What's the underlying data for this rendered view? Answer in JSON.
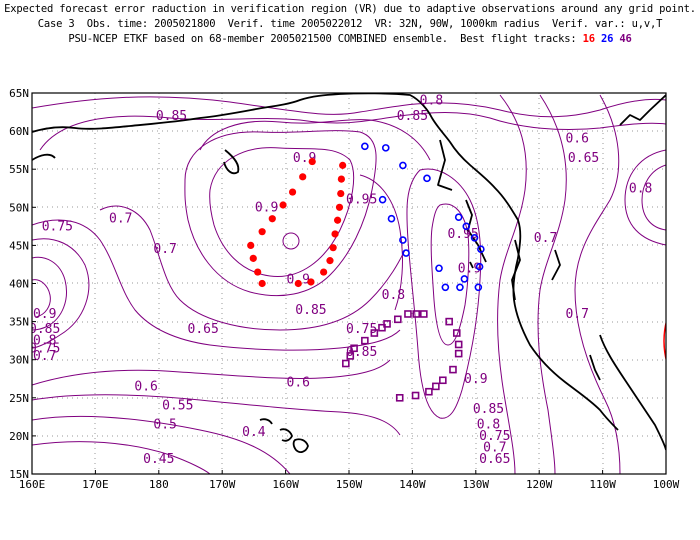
{
  "header": {
    "line1": "Expected forecast error raduction in verification region (VR) due to adaptive observations around any grid point.",
    "line2": "Case 3  Obs. time: 2005021800  Verif. time 2005022012  VR: 32N, 90W, 1000km radius  Verif. var.: u,v,T",
    "line3_prefix": "PSU-NCEP ETKF based on 68-member 2005021500 COMBINED ensemble.  Best flight tracks: ",
    "tracks": [
      {
        "label": "16",
        "color": "#ff0000"
      },
      {
        "label": "26",
        "color": "#0000ff"
      },
      {
        "label": "46",
        "color": "#800080"
      }
    ]
  },
  "map": {
    "lat_labels": [
      "65N",
      "60N",
      "55N",
      "50N",
      "45N",
      "40N",
      "35N",
      "30N",
      "25N",
      "20N",
      "15N"
    ],
    "lon_labels": [
      "160E",
      "170E",
      "180",
      "170W",
      "160W",
      "150W",
      "140W",
      "130W",
      "120W",
      "110W",
      "100W"
    ],
    "contour_color": "#800080",
    "grid": true,
    "verification_circle_color": "#ff0000",
    "contour_labels": [
      {
        "text": "0.8",
        "lon": -137,
        "lat": 64
      },
      {
        "text": "0.85",
        "lon": -178,
        "lat": 62
      },
      {
        "text": "0.85",
        "lon": -140,
        "lat": 62
      },
      {
        "text": "0.6",
        "lon": -114,
        "lat": 59
      },
      {
        "text": "0.65",
        "lon": -113,
        "lat": 56.5
      },
      {
        "text": "0.9",
        "lon": -157,
        "lat": 56.5
      },
      {
        "text": "0.8",
        "lon": -104,
        "lat": 52.5
      },
      {
        "text": "0.9",
        "lon": -163,
        "lat": 50
      },
      {
        "text": "0.95",
        "lon": -148,
        "lat": 51
      },
      {
        "text": "0.75",
        "lon": 164,
        "lat": 47.5
      },
      {
        "text": "0.7",
        "lon": 174,
        "lat": 48.5
      },
      {
        "text": "0.95",
        "lon": -132,
        "lat": 46.5
      },
      {
        "text": "0.7",
        "lon": -119,
        "lat": 46
      },
      {
        "text": "0.7",
        "lon": -179,
        "lat": 44.5
      },
      {
        "text": "0.9",
        "lon": -158,
        "lat": 40.5
      },
      {
        "text": "0.9",
        "lon": -131,
        "lat": 42
      },
      {
        "text": "0.8",
        "lon": -143,
        "lat": 38.5
      },
      {
        "text": "0.85",
        "lon": -156,
        "lat": 36.5
      },
      {
        "text": "0.9",
        "lon": 162,
        "lat": 36
      },
      {
        "text": "0.85",
        "lon": 162,
        "lat": 34
      },
      {
        "text": "0.65",
        "lon": -173,
        "lat": 34
      },
      {
        "text": "0.75",
        "lon": -148,
        "lat": 34
      },
      {
        "text": "0.7",
        "lon": -114,
        "lat": 36
      },
      {
        "text": "0.8",
        "lon": 162,
        "lat": 32.5
      },
      {
        "text": "0.75",
        "lon": 162,
        "lat": 31.5
      },
      {
        "text": "0.7",
        "lon": 162,
        "lat": 30.5
      },
      {
        "text": "0.85",
        "lon": -148,
        "lat": 31
      },
      {
        "text": "0.6",
        "lon": -158,
        "lat": 27
      },
      {
        "text": "0.6",
        "lon": 178,
        "lat": 26.5
      },
      {
        "text": "0.9",
        "lon": -130,
        "lat": 27.5
      },
      {
        "text": "0.55",
        "lon": -177,
        "lat": 24
      },
      {
        "text": "0.85",
        "lon": -128,
        "lat": 23.5
      },
      {
        "text": "0.8",
        "lon": -128,
        "lat": 21.5
      },
      {
        "text": "0.5",
        "lon": -179,
        "lat": 21.5
      },
      {
        "text": "0.75",
        "lon": -127,
        "lat": 20
      },
      {
        "text": "0.4",
        "lon": -165,
        "lat": 20.5
      },
      {
        "text": "0.7",
        "lon": -127,
        "lat": 18.5
      },
      {
        "text": "0.65",
        "lon": -127,
        "lat": 17
      },
      {
        "text": "0.45",
        "lon": -180,
        "lat": 17
      }
    ],
    "track_16": [
      [
        -155.8,
        56
      ],
      [
        -157.3,
        54
      ],
      [
        -158.9,
        52
      ],
      [
        -160.4,
        50.3
      ],
      [
        -162.1,
        48.5
      ],
      [
        -163.7,
        46.8
      ],
      [
        -165.5,
        45
      ],
      [
        -165.1,
        43.3
      ],
      [
        -164.4,
        41.5
      ],
      [
        -163.7,
        40
      ],
      [
        -158,
        40
      ],
      [
        -156,
        40.2
      ],
      [
        -154,
        41.5
      ],
      [
        -153,
        43
      ],
      [
        -152.5,
        44.7
      ],
      [
        -152.2,
        46.5
      ],
      [
        -151.8,
        48.3
      ],
      [
        -151.5,
        50
      ],
      [
        -151.3,
        51.8
      ],
      [
        -151.2,
        53.7
      ],
      [
        -151,
        55.5
      ]
    ],
    "track_26": [
      [
        -147.5,
        58
      ],
      [
        -144.2,
        57.8
      ],
      [
        -141.5,
        55.5
      ],
      [
        -137.7,
        53.8
      ],
      [
        -144.7,
        51
      ],
      [
        -143.3,
        48.5
      ],
      [
        -141.5,
        45.7
      ],
      [
        -141,
        44
      ],
      [
        -135.8,
        42
      ],
      [
        -132.7,
        48.7
      ],
      [
        -131.5,
        47.5
      ],
      [
        -130.2,
        46
      ],
      [
        -129.2,
        44.5
      ],
      [
        -129.4,
        42.2
      ],
      [
        -129.6,
        39.5
      ],
      [
        -132.5,
        39.5
      ],
      [
        -134.8,
        39.5
      ],
      [
        -131.8,
        40.6
      ]
    ],
    "track_46": [
      [
        -150.5,
        29.5
      ],
      [
        -149.8,
        30.5
      ],
      [
        -149.2,
        31.5
      ],
      [
        -147.5,
        32.5
      ],
      [
        -146,
        33.5
      ],
      [
        -144.8,
        34.2
      ],
      [
        -144,
        34.7
      ],
      [
        -142.3,
        35.3
      ],
      [
        -140.7,
        36
      ],
      [
        -139.4,
        36
      ],
      [
        -138.2,
        36
      ],
      [
        -134.2,
        35
      ],
      [
        -133,
        33.5
      ],
      [
        -132.7,
        32
      ],
      [
        -132.7,
        30.8
      ],
      [
        -133.6,
        28.7
      ],
      [
        -135.2,
        27.3
      ],
      [
        -136.3,
        26.5
      ],
      [
        -137.4,
        25.8
      ],
      [
        -139.5,
        25.3
      ],
      [
        -142,
        25
      ]
    ]
  }
}
